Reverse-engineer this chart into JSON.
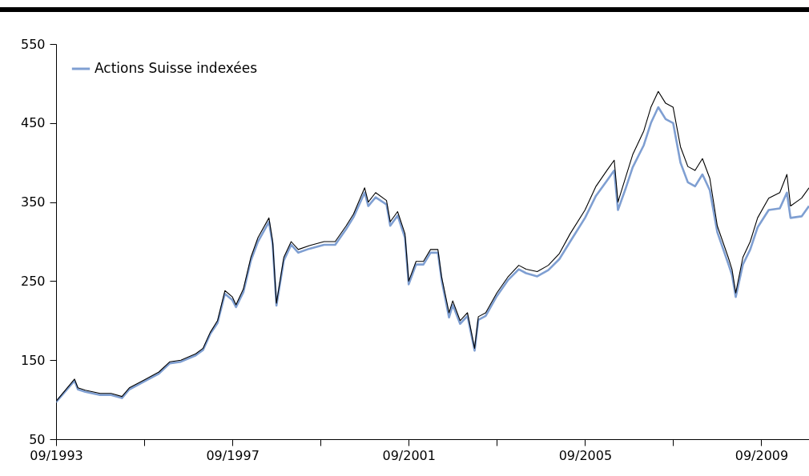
{
  "chart_data": {
    "type": "line",
    "x": [
      "1993-09",
      "1994-02",
      "1994-03",
      "1994-05",
      "1994-09",
      "1994-12",
      "1995-03",
      "1995-05",
      "1995-09",
      "1996-01",
      "1996-04",
      "1996-07",
      "1996-11",
      "1997-01",
      "1997-03",
      "1997-05",
      "1997-07",
      "1997-09",
      "1997-10",
      "1997-12",
      "1998-02",
      "1998-04",
      "1998-07",
      "1998-08",
      "1998-09",
      "1998-11",
      "1999-01",
      "1999-03",
      "1999-06",
      "1999-10",
      "2000-01",
      "2000-04",
      "2000-06",
      "2000-09",
      "2000-10",
      "2000-12",
      "2001-03",
      "2001-04",
      "2001-06",
      "2001-08",
      "2001-09",
      "2001-11",
      "2002-01",
      "2002-03",
      "2002-05",
      "2002-06",
      "2002-08",
      "2002-09",
      "2002-11",
      "2003-01",
      "2003-03",
      "2003-04",
      "2003-06",
      "2003-09",
      "2003-12",
      "2004-03",
      "2004-05",
      "2004-08",
      "2004-11",
      "2005-02",
      "2005-05",
      "2005-09",
      "2005-12",
      "2006-03",
      "2006-05",
      "2006-06",
      "2006-08",
      "2006-10",
      "2007-01",
      "2007-03",
      "2007-05",
      "2007-07",
      "2007-09",
      "2007-11",
      "2008-01",
      "2008-03",
      "2008-05",
      "2008-07",
      "2008-09",
      "2008-12",
      "2009-01",
      "2009-02",
      "2009-04",
      "2009-06",
      "2009-08",
      "2009-11",
      "2010-02",
      "2010-04",
      "2010-05",
      "2010-08",
      "2010-10"
    ],
    "series": [
      {
        "name": "Actions Suisse indexées",
        "color": "#7f9fd2",
        "values": [
          97,
          124,
          113,
          110,
          106,
          106,
          102,
          113,
          123,
          133,
          146,
          148,
          156,
          163,
          183,
          197,
          234,
          226,
          217,
          236,
          276,
          300,
          325,
          296,
          219,
          276,
          296,
          286,
          291,
          296,
          296,
          316,
          331,
          362,
          345,
          356,
          347,
          320,
          333,
          305,
          246,
          271,
          271,
          286,
          286,
          251,
          204,
          220,
          196,
          206,
          162,
          201,
          206,
          231,
          251,
          265,
          260,
          256,
          264,
          278,
          300,
          330,
          358,
          377,
          390,
          340,
          366,
          394,
          422,
          450,
          470,
          455,
          450,
          400,
          375,
          370,
          385,
          365,
          312,
          272,
          258,
          230,
          271,
          290,
          318,
          340,
          342,
          362,
          330,
          332,
          345
        ]
      },
      {
        "color": "#000000",
        "values": [
          98,
          126,
          115,
          112,
          108,
          108,
          104,
          115,
          125,
          135,
          148,
          150,
          158,
          165,
          185,
          200,
          238,
          230,
          220,
          240,
          280,
          305,
          330,
          300,
          222,
          280,
          300,
          290,
          295,
          300,
          300,
          320,
          335,
          368,
          350,
          362,
          352,
          325,
          338,
          310,
          250,
          275,
          275,
          290,
          290,
          255,
          210,
          225,
          200,
          210,
          165,
          205,
          210,
          235,
          255,
          270,
          265,
          262,
          270,
          285,
          310,
          340,
          370,
          390,
          403,
          350,
          380,
          410,
          440,
          470,
          490,
          475,
          470,
          420,
          395,
          390,
          405,
          380,
          320,
          280,
          265,
          235,
          280,
          300,
          330,
          355,
          362,
          385,
          345,
          355,
          368
        ]
      }
    ],
    "xlim": [
      "1993-09",
      "2010-10"
    ],
    "xticks": [
      {
        "value": "1993-09",
        "label": "09/1993"
      },
      {
        "value": "1995-09",
        "label": null
      },
      {
        "value": "1997-09",
        "label": "09/1997"
      },
      {
        "value": "1999-09",
        "label": null
      },
      {
        "value": "2001-09",
        "label": "09/2001"
      },
      {
        "value": "2003-09",
        "label": null
      },
      {
        "value": "2005-09",
        "label": "09/2005"
      },
      {
        "value": "2007-09",
        "label": null
      },
      {
        "value": "2009-09",
        "label": "09/2009"
      }
    ],
    "ylim": [
      50,
      550
    ],
    "yticks": [
      50,
      150,
      250,
      350,
      450,
      550
    ],
    "legend": "top left"
  }
}
